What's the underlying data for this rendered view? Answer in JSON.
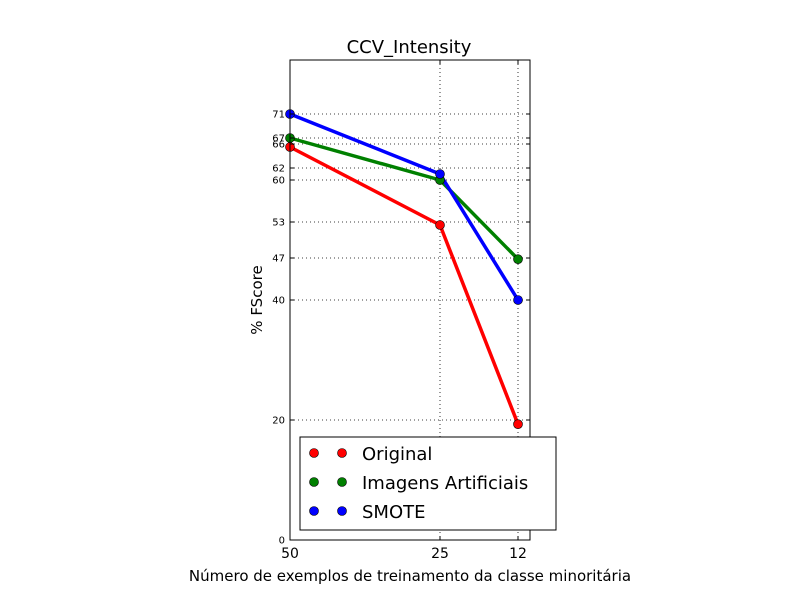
{
  "chart_data": {
    "type": "line",
    "title": "CCV_Intensity",
    "xlabel": "Número de exemplos de treinamento da classe minoritária",
    "ylabel": "% FScore",
    "x": [
      50,
      25,
      12
    ],
    "x_tick_labels": [
      "50",
      "25",
      "12"
    ],
    "xlim": [
      50,
      10
    ],
    "ylim": [
      0,
      80
    ],
    "y_ticks": [
      0,
      20,
      40,
      47,
      53,
      60,
      62,
      66,
      67,
      71
    ],
    "grid": true,
    "legend_position": "lower-right",
    "series": [
      {
        "name": "Original",
        "color": "#ff0000",
        "values": [
          65.5,
          52.5,
          19.3
        ]
      },
      {
        "name": "Imagens Artificiais",
        "color": "#008000",
        "values": [
          67,
          60,
          46.8
        ]
      },
      {
        "name": "SMOTE",
        "color": "#0000ff",
        "values": [
          71,
          61,
          40
        ]
      }
    ]
  }
}
